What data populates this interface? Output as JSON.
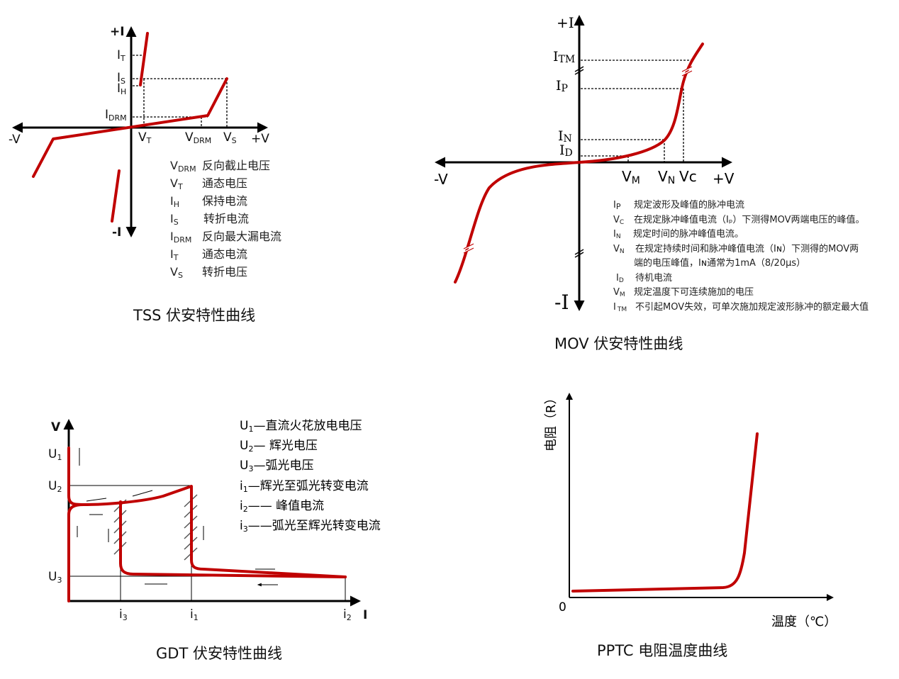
{
  "colors": {
    "curve": "#c00000",
    "axis": "#000000"
  },
  "tss": {
    "title": "TSS 伏安特性曲线",
    "axis": {
      "plus_i": "+I",
      "minus_i": "-I",
      "plus_v": "+V",
      "minus_v": "-V"
    },
    "labels": {
      "it": [
        "I",
        "T"
      ],
      "is": [
        "I",
        "S"
      ],
      "ih": [
        "I",
        "H"
      ],
      "idrm": [
        "I",
        "DRM"
      ],
      "vt": [
        "V",
        "T"
      ],
      "vdrm": [
        "V",
        "DRM"
      ],
      "vs": [
        "V",
        "S"
      ]
    },
    "legend": [
      {
        "sym": "V",
        "sub": "DRM",
        "desc": "反向截止电压"
      },
      {
        "sym": "V",
        "sub": "T",
        "desc": "通态电压"
      },
      {
        "sym": "I",
        "sub": "H",
        "desc": "保持电流"
      },
      {
        "sym": "I",
        "sub": "S",
        "desc": "转折电流"
      },
      {
        "sym": "I",
        "sub": "DRM",
        "desc": "反向最大漏电流"
      },
      {
        "sym": "I",
        "sub": "T",
        "desc": "通态电流"
      },
      {
        "sym": "V",
        "sub": "S",
        "desc": "转折电压"
      }
    ]
  },
  "mov": {
    "title": "MOV 伏安特性曲线",
    "axis": {
      "plus_i": "+I",
      "minus_i": "-I",
      "plus_v": "+V",
      "minus_v": "-V"
    },
    "labels": {
      "itm": [
        "I",
        "TM"
      ],
      "ip": [
        "I",
        "P"
      ],
      "in": [
        "I",
        "N"
      ],
      "id": [
        "I",
        "D"
      ],
      "vm": [
        "V",
        "M"
      ],
      "vn": [
        "V",
        "N"
      ],
      "vc": [
        "V",
        "c"
      ]
    },
    "legend": [
      {
        "sym": "I",
        "sub": "P",
        "desc": "规定波形及峰值的脉冲电流"
      },
      {
        "sym": "V",
        "sub": "C",
        "desc": "在规定脉冲峰值电流（Iₚ）下测得MOV两端电压的峰值。"
      },
      {
        "sym": "I",
        "sub": "N",
        "desc": "规定时间的脉冲峰值电流。"
      },
      {
        "sym": "V",
        "sub": "N",
        "desc": "在规定持续时间和脉冲峰值电流（Iɴ）下测得的MOV两"
      },
      {
        "sym": "",
        "sub": "",
        "desc": "端的电压峰值，Iɴ通常为1mA（8/20μs）"
      },
      {
        "sym": "I",
        "sub": "D",
        "desc": "待机电流"
      },
      {
        "sym": "V",
        "sub": "M",
        "desc": "规定温度下可连续施加的电压"
      },
      {
        "sym": "I",
        "sub": "TM",
        "desc": "不引起MOV失效，可单次施加规定波形脉冲的额定最大值"
      }
    ]
  },
  "gdt": {
    "title": "GDT 伏安特性曲线",
    "axis": {
      "v": "V",
      "i": "I"
    },
    "labels": {
      "u1": [
        "U",
        "1"
      ],
      "u2": [
        "U",
        "2"
      ],
      "u3": [
        "U",
        "3"
      ],
      "i3": [
        "i",
        "3"
      ],
      "i1": [
        "i",
        "1"
      ],
      "i2": [
        "i",
        "2"
      ]
    },
    "legend": [
      {
        "sym": "U",
        "sub": "1",
        "desc": "—直流火花放电电压"
      },
      {
        "sym": "U",
        "sub": "2",
        "desc": "— 辉光电压"
      },
      {
        "sym": "U",
        "sub": "3",
        "desc": "—弧光电压"
      },
      {
        "sym": "i",
        "sub": "1",
        "desc": "—辉光至弧光转变电流"
      },
      {
        "sym": "i",
        "sub": "2",
        "desc": "—— 峰值电流"
      },
      {
        "sym": "i",
        "sub": "3",
        "desc": "——弧光至辉光转变电流"
      }
    ]
  },
  "pptc": {
    "title": "PPTC  电阻温度曲线",
    "ylabel": "电阻（R）",
    "xlabel": "温度（℃）",
    "origin": "0"
  }
}
